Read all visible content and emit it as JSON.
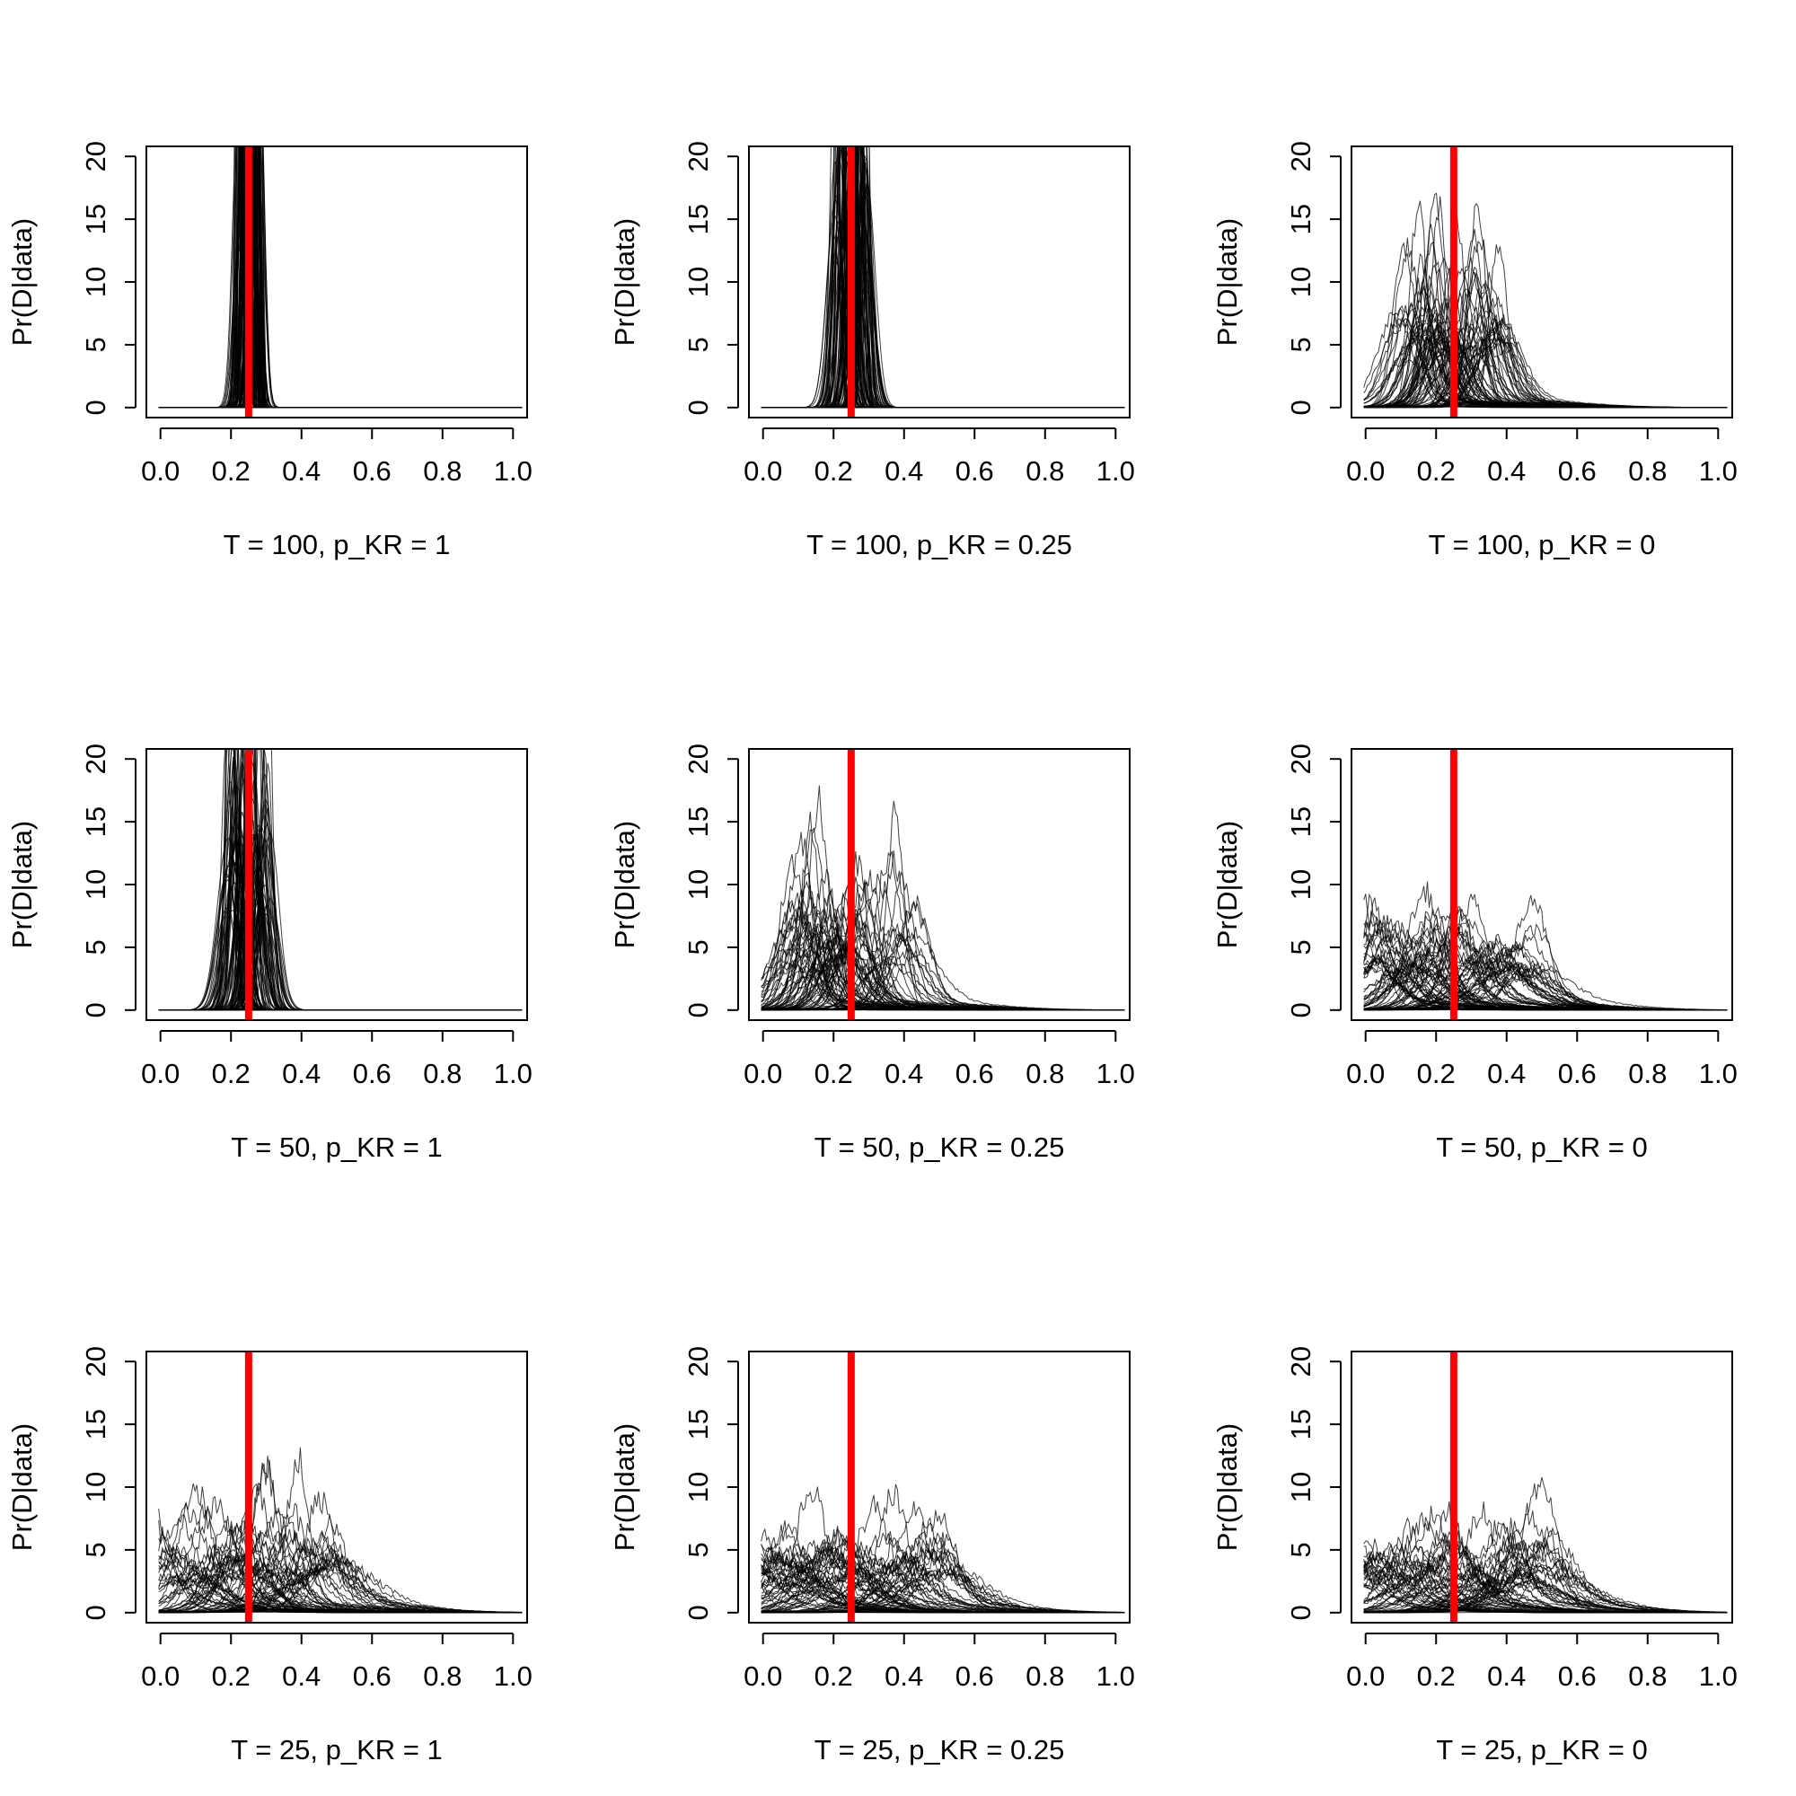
{
  "chart_data": [
    {
      "type": "line",
      "title": "T = 100, p_KR = 1",
      "ylabel": "Pr(D|data)",
      "xlim": [
        -0.04,
        1.04
      ],
      "ylim": [
        -0.8,
        20.8
      ],
      "xticks": [
        "0.0",
        "0.2",
        "0.4",
        "0.6",
        "0.8",
        "1.0"
      ],
      "yticks": [
        "0",
        "5",
        "10",
        "15",
        "20"
      ],
      "reference_line": {
        "x": 0.25,
        "color": "#ff0000"
      },
      "curves": {
        "description": "many overlaid posterior density curves",
        "count": 100,
        "center": 0.25,
        "spread": 0.008,
        "peak_max": 60,
        "tail": 0.0,
        "noise": 0.0
      }
    },
    {
      "type": "line",
      "title": "T = 100, p_KR = 0.25",
      "ylabel": "Pr(D|data)",
      "xlim": [
        -0.04,
        1.04
      ],
      "ylim": [
        -0.8,
        20.8
      ],
      "xticks": [
        "0.0",
        "0.2",
        "0.4",
        "0.6",
        "0.8",
        "1.0"
      ],
      "yticks": [
        "0",
        "5",
        "10",
        "15",
        "20"
      ],
      "reference_line": {
        "x": 0.25,
        "color": "#ff0000"
      },
      "curves": {
        "count": 100,
        "center": 0.25,
        "spread": 0.012,
        "peak_max": 40,
        "tail": 0.0,
        "noise": 0.0
      }
    },
    {
      "type": "line",
      "title": "T = 100, p_KR = 0",
      "ylabel": "Pr(D|data)",
      "xlim": [
        -0.04,
        1.04
      ],
      "ylim": [
        -0.8,
        20.8
      ],
      "xticks": [
        "0.0",
        "0.2",
        "0.4",
        "0.6",
        "0.8",
        "1.0"
      ],
      "yticks": [
        "0",
        "5",
        "10",
        "15",
        "20"
      ],
      "reference_line": {
        "x": 0.25,
        "color": "#ff0000"
      },
      "curves": {
        "count": 90,
        "center": 0.24,
        "spread": 0.03,
        "peak_max": 30,
        "tail": 0.3,
        "noise": 0.15
      }
    },
    {
      "type": "line",
      "title": "T = 50, p_KR = 1",
      "ylabel": "Pr(D|data)",
      "xlim": [
        -0.04,
        1.04
      ],
      "ylim": [
        -0.8,
        20.8
      ],
      "xticks": [
        "0.0",
        "0.2",
        "0.4",
        "0.6",
        "0.8",
        "1.0"
      ],
      "yticks": [
        "0",
        "5",
        "10",
        "15",
        "20"
      ],
      "reference_line": {
        "x": 0.25,
        "color": "#ff0000"
      },
      "curves": {
        "count": 100,
        "center": 0.25,
        "spread": 0.016,
        "peak_max": 35,
        "tail": 0.0,
        "noise": 0.0
      }
    },
    {
      "type": "line",
      "title": "T = 50, p_KR = 0.25",
      "ylabel": "Pr(D|data)",
      "xlim": [
        -0.04,
        1.04
      ],
      "ylim": [
        -0.8,
        20.8
      ],
      "xticks": [
        "0.0",
        "0.2",
        "0.4",
        "0.6",
        "0.8",
        "1.0"
      ],
      "yticks": [
        "0",
        "5",
        "10",
        "15",
        "20"
      ],
      "reference_line": {
        "x": 0.25,
        "color": "#ff0000"
      },
      "curves": {
        "count": 80,
        "center": 0.25,
        "spread": 0.035,
        "peak_max": 22,
        "tail": 0.35,
        "noise": 0.2
      }
    },
    {
      "type": "line",
      "title": "T = 50, p_KR = 0",
      "ylabel": "Pr(D|data)",
      "xlim": [
        -0.04,
        1.04
      ],
      "ylim": [
        -0.8,
        20.8
      ],
      "xticks": [
        "0.0",
        "0.2",
        "0.4",
        "0.6",
        "0.8",
        "1.0"
      ],
      "yticks": [
        "0",
        "5",
        "10",
        "15",
        "20"
      ],
      "reference_line": {
        "x": 0.25,
        "color": "#ff0000"
      },
      "curves": {
        "count": 80,
        "center": 0.24,
        "spread": 0.05,
        "peak_max": 18,
        "tail": 0.4,
        "noise": 0.2
      }
    },
    {
      "type": "line",
      "title": "T = 25, p_KR = 1",
      "ylabel": "Pr(D|data)",
      "xlim": [
        -0.04,
        1.04
      ],
      "ylim": [
        -0.8,
        20.8
      ],
      "xticks": [
        "0.0",
        "0.2",
        "0.4",
        "0.6",
        "0.8",
        "1.0"
      ],
      "yticks": [
        "0",
        "5",
        "10",
        "15",
        "20"
      ],
      "reference_line": {
        "x": 0.25,
        "color": "#ff0000"
      },
      "curves": {
        "count": 70,
        "center": 0.23,
        "spread": 0.05,
        "peak_max": 18,
        "tail": 0.5,
        "noise": 0.25
      }
    },
    {
      "type": "line",
      "title": "T = 25, p_KR = 0.25",
      "ylabel": "Pr(D|data)",
      "xlim": [
        -0.04,
        1.04
      ],
      "ylim": [
        -0.8,
        20.8
      ],
      "xticks": [
        "0.0",
        "0.2",
        "0.4",
        "0.6",
        "0.8",
        "1.0"
      ],
      "yticks": [
        "0",
        "5",
        "10",
        "15",
        "20"
      ],
      "reference_line": {
        "x": 0.25,
        "color": "#ff0000"
      },
      "curves": {
        "count": 70,
        "center": 0.22,
        "spread": 0.06,
        "peak_max": 14,
        "tail": 0.6,
        "noise": 0.25
      }
    },
    {
      "type": "line",
      "title": "T = 25, p_KR = 0",
      "ylabel": "Pr(D|data)",
      "xlim": [
        -0.04,
        1.04
      ],
      "ylim": [
        -0.8,
        20.8
      ],
      "xticks": [
        "0.0",
        "0.2",
        "0.4",
        "0.6",
        "0.8",
        "1.0"
      ],
      "yticks": [
        "0",
        "5",
        "10",
        "15",
        "20"
      ],
      "reference_line": {
        "x": 0.25,
        "color": "#ff0000"
      },
      "curves": {
        "count": 70,
        "center": 0.22,
        "spread": 0.06,
        "peak_max": 16,
        "tail": 0.6,
        "noise": 0.25
      }
    }
  ]
}
